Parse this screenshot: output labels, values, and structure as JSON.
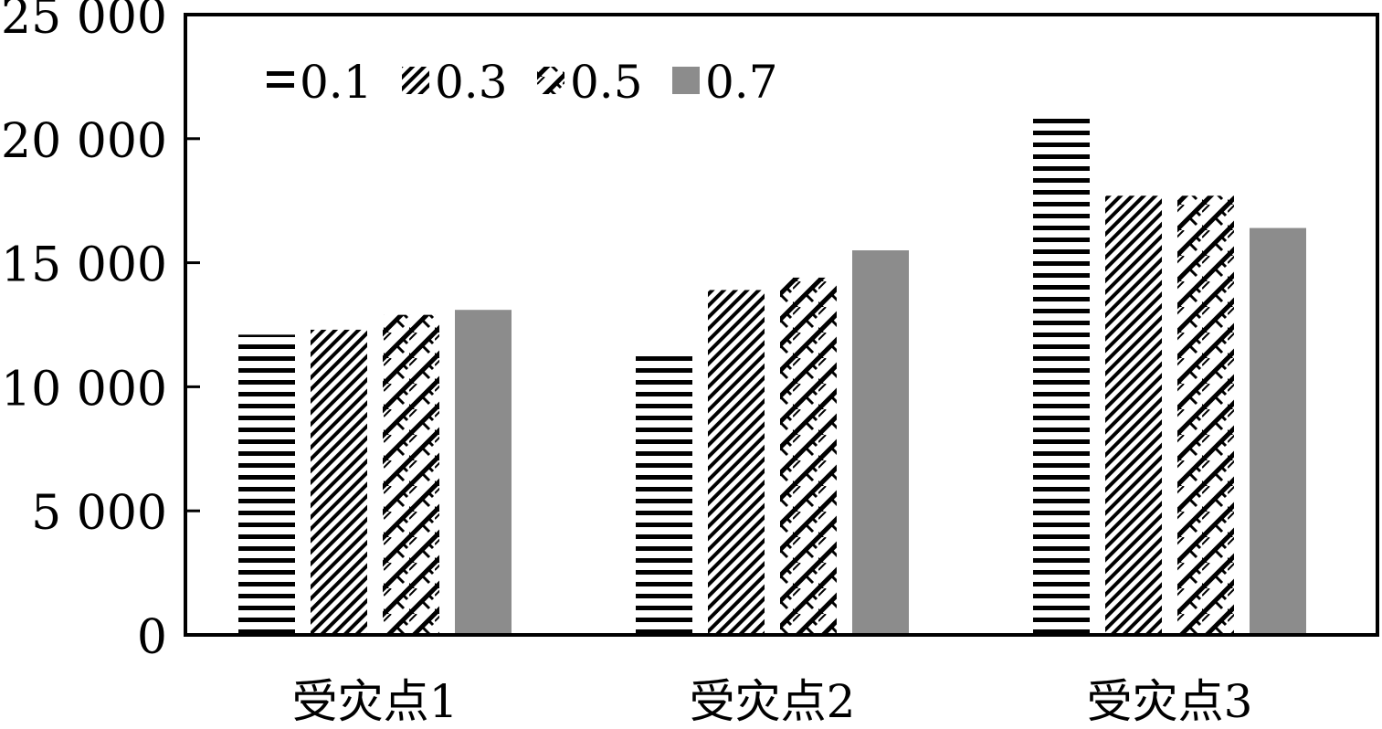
{
  "chart_data": {
    "type": "bar",
    "categories": [
      "受灾点1",
      "受灾点2",
      "受灾点3"
    ],
    "series": [
      {
        "name": "0.1",
        "pattern": "horizontal-stripes",
        "values": [
          12100,
          11500,
          20900
        ]
      },
      {
        "name": "0.3",
        "pattern": "diagonal-dense",
        "values": [
          12300,
          13900,
          17700
        ]
      },
      {
        "name": "0.5",
        "pattern": "diagonal-weave",
        "values": [
          12900,
          14400,
          17700
        ]
      },
      {
        "name": "0.7",
        "pattern": "solid-gray",
        "values": [
          13100,
          15500,
          16400
        ]
      }
    ],
    "ylim": [
      0,
      25000
    ],
    "yticks": [
      0,
      5000,
      10000,
      15000,
      20000,
      25000
    ],
    "ytick_labels": [
      "0",
      "5 000",
      "10 000",
      "15 000",
      "20 000",
      "25 000"
    ],
    "title": "",
    "xlabel": "",
    "ylabel": "",
    "legend_position": "top-left",
    "grid": false,
    "colors": {
      "axis": "#000000",
      "solid_bar": "#8c8c8c",
      "stripe": "#000000",
      "background": "#ffffff"
    }
  }
}
